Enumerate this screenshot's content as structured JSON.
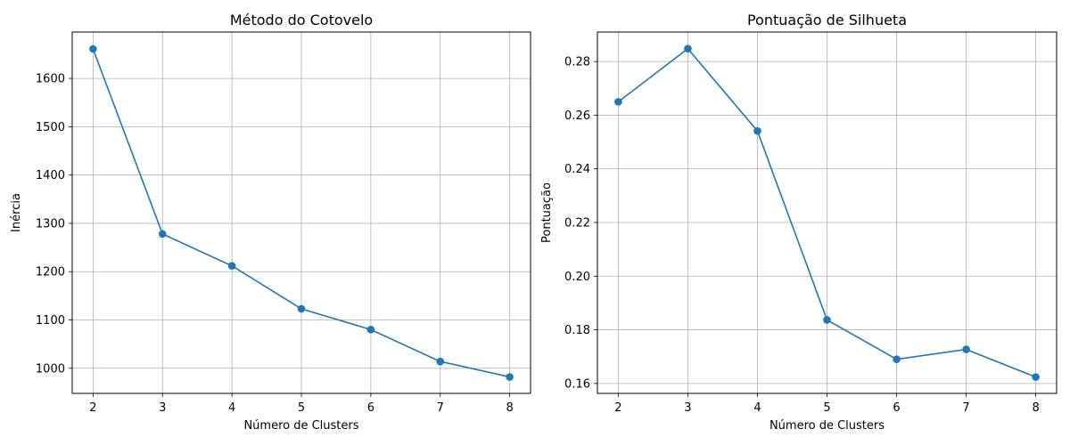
{
  "colors": {
    "series": "#1f77b4",
    "grid": "#b0b0b0",
    "axis": "#000000",
    "background": "#ffffff"
  },
  "chart_data": [
    {
      "type": "line",
      "title": "Método do Cotovelo",
      "xlabel": "Número de Clusters",
      "ylabel": "Inércia",
      "x": [
        2,
        3,
        4,
        5,
        6,
        7,
        8
      ],
      "series": [
        {
          "values": [
            1661,
            1278,
            1212,
            1123,
            1080,
            1014,
            982
          ]
        }
      ],
      "xlim": [
        1.7,
        8.3
      ],
      "ylim": [
        948,
        1696
      ],
      "xticks": [
        2,
        3,
        4,
        5,
        6,
        7,
        8
      ],
      "yticks": [
        1000,
        1100,
        1200,
        1300,
        1400,
        1500,
        1600
      ],
      "ytick_labels": [
        "1000",
        "1100",
        "1200",
        "1300",
        "1400",
        "1500",
        "1600"
      ],
      "grid": true,
      "marker": "circle"
    },
    {
      "type": "line",
      "title": "Pontuação de Silhueta",
      "xlabel": "Número de Clusters",
      "ylabel": "Pontuação",
      "x": [
        2,
        3,
        4,
        5,
        6,
        7,
        8
      ],
      "series": [
        {
          "values": [
            0.265,
            0.2848,
            0.2541,
            0.1837,
            0.169,
            0.1727,
            0.1624
          ]
        }
      ],
      "xlim": [
        1.7,
        8.3
      ],
      "ylim": [
        0.1563,
        0.291
      ],
      "xticks": [
        2,
        3,
        4,
        5,
        6,
        7,
        8
      ],
      "yticks": [
        0.16,
        0.18,
        0.2,
        0.22,
        0.24,
        0.26,
        0.28
      ],
      "ytick_labels": [
        "0.16",
        "0.18",
        "0.20",
        "0.22",
        "0.24",
        "0.26",
        "0.28"
      ],
      "grid": true,
      "marker": "circle"
    }
  ]
}
